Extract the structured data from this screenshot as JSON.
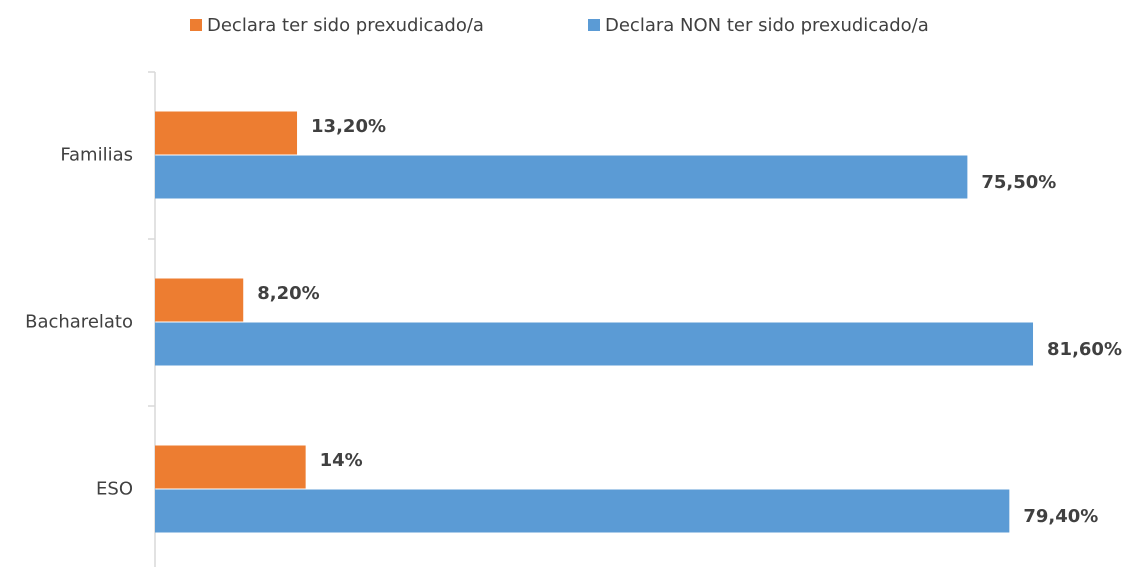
{
  "chart_data": {
    "type": "hbar",
    "categories": [
      "Familias",
      "Bacharelato",
      "ESO"
    ],
    "series": [
      {
        "name": "Declara ter sido prexudicado/a",
        "color": "#ed7d31",
        "values": [
          13.2,
          8.2,
          14
        ],
        "value_labels": [
          "13,20%",
          "8,20%",
          "14%"
        ]
      },
      {
        "name": "Declara NON ter sido prexudicado/a",
        "color": "#5b9bd5",
        "values": [
          75.5,
          81.6,
          79.4
        ],
        "value_labels": [
          "75,50%",
          "81,60%",
          "79,40%"
        ]
      }
    ],
    "legend": "top"
  }
}
